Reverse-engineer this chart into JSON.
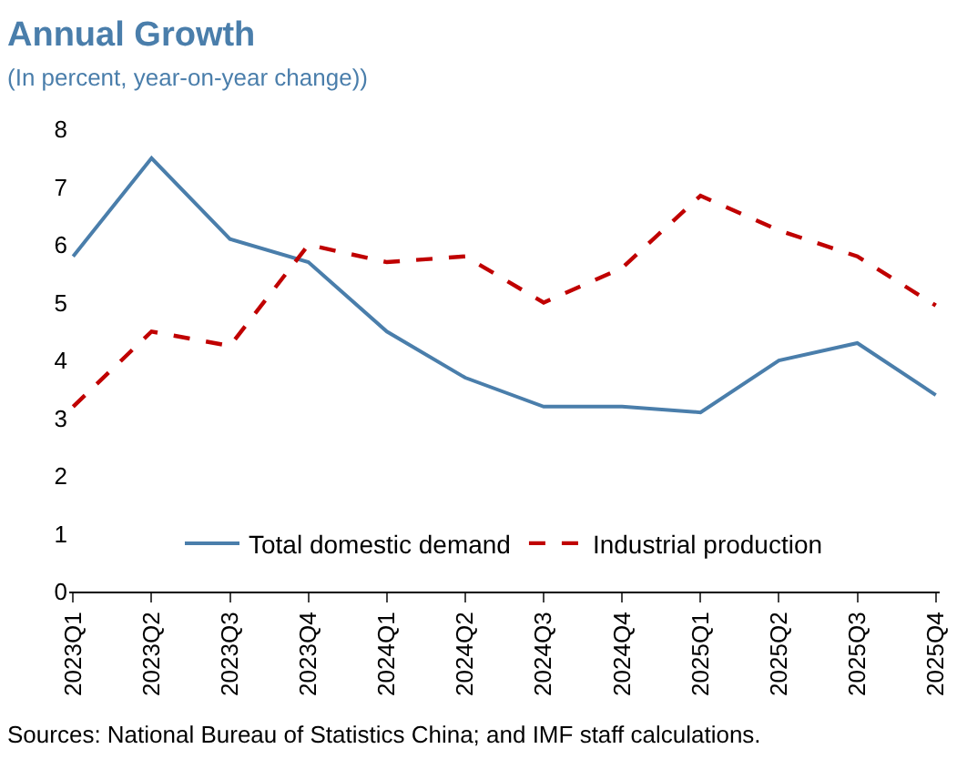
{
  "chart_data": {
    "type": "line",
    "title": "Annual Growth",
    "subtitle": "(In percent, year-on-year change))",
    "categories": [
      "2023Q1",
      "2023Q2",
      "2023Q3",
      "2023Q4",
      "2024Q1",
      "2024Q2",
      "2024Q3",
      "2024Q4",
      "2025Q1",
      "2025Q2",
      "2025Q3",
      "2025Q4"
    ],
    "series": [
      {
        "name": "Total domestic demand",
        "color": "#4a7eab",
        "line_style": "solid",
        "values": [
          5.8,
          7.5,
          6.1,
          5.7,
          4.5,
          3.7,
          3.2,
          3.2,
          3.1,
          4.0,
          4.3,
          3.4
        ]
      },
      {
        "name": "Industrial production",
        "color": "#c00000",
        "line_style": "dashed",
        "values": [
          3.2,
          4.5,
          4.25,
          6.0,
          5.7,
          5.8,
          5.0,
          5.6,
          6.85,
          6.25,
          5.8,
          4.95
        ]
      }
    ],
    "ylim": [
      0,
      8
    ],
    "yticks": [
      0,
      1,
      2,
      3,
      4,
      5,
      6,
      7,
      8
    ],
    "legend": "bottom",
    "marker": "none",
    "annotations": [
      "Sources: National Bureau of Statistics China; and IMF staff calculations."
    ]
  }
}
